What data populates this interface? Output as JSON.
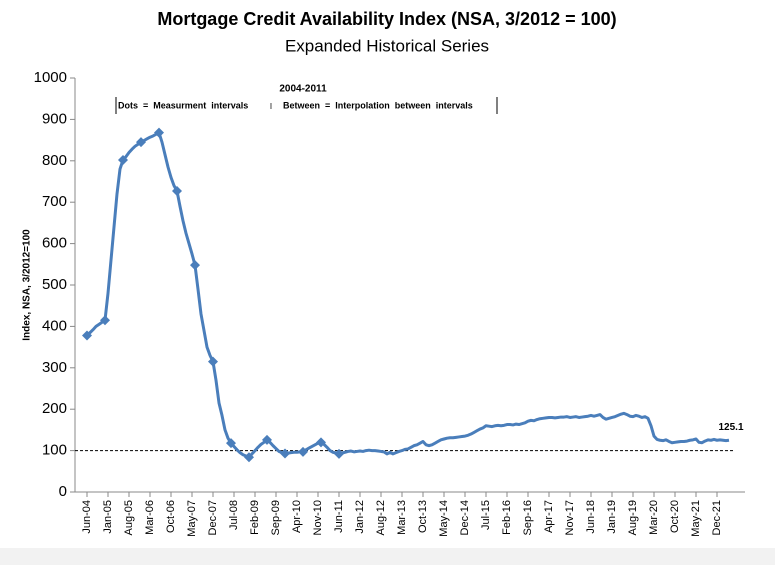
{
  "chart_data": {
    "type": "line",
    "title": "Mortgage Credit Availability Index (NSA, 3/2012 = 100)",
    "subtitle": "Expanded Historical Series",
    "y_label": "Index, NSA, 3/2012=100",
    "annotation_title": "2004-2011",
    "annotation_left": "Dots  =  Measurment  intervals",
    "annotation_sep": "I",
    "annotation_right": "Between  =  Interpolation  between  intervals",
    "categories": [
      "Jun-04",
      null,
      null,
      null,
      null,
      null,
      null,
      "Jan-05",
      null,
      null,
      null,
      null,
      null,
      null,
      "Aug-05",
      null,
      null,
      null,
      null,
      null,
      null,
      "Mar-06",
      null,
      null,
      null,
      null,
      null,
      null,
      "Oct-06",
      null,
      null,
      null,
      null,
      null,
      null,
      "May-07",
      null,
      null,
      null,
      null,
      null,
      null,
      "Dec-07",
      null,
      null,
      null,
      null,
      null,
      null,
      "Jul-08",
      null,
      null,
      null,
      null,
      null,
      null,
      "Feb-09",
      null,
      null,
      null,
      null,
      null,
      null,
      "Sep-09",
      null,
      null,
      null,
      null,
      null,
      null,
      "Apr-10",
      null,
      null,
      null,
      null,
      null,
      null,
      "Nov-10",
      null,
      null,
      null,
      null,
      null,
      null,
      "Jun-11",
      null,
      null,
      null,
      null,
      null,
      null,
      "Jan-12",
      null,
      null,
      null,
      null,
      null,
      null,
      "Aug-12",
      null,
      null,
      null,
      null,
      null,
      null,
      "Mar-13",
      null,
      null,
      null,
      null,
      null,
      null,
      "Oct-13",
      null,
      null,
      null,
      null,
      null,
      null,
      "May-14",
      null,
      null,
      null,
      null,
      null,
      null,
      "Dec-14",
      null,
      null,
      null,
      null,
      null,
      null,
      "Jul-15",
      null,
      null,
      null,
      null,
      null,
      null,
      "Feb-16",
      null,
      null,
      null,
      null,
      null,
      null,
      "Sep-16",
      null,
      null,
      null,
      null,
      null,
      null,
      "Apr-17",
      null,
      null,
      null,
      null,
      null,
      null,
      "Nov-17",
      null,
      null,
      null,
      null,
      null,
      null,
      "Jun-18",
      null,
      null,
      null,
      null,
      null,
      null,
      "Jan-19",
      null,
      null,
      null,
      null,
      null,
      null,
      "Aug-19",
      null,
      null,
      null,
      null,
      null,
      null,
      "Mar-20",
      null,
      null,
      null,
      null,
      null,
      null,
      "Oct-20",
      null,
      null,
      null,
      null,
      null,
      null,
      "May-21",
      null,
      null,
      null,
      null,
      null,
      null,
      "Dec-21",
      null,
      null,
      null,
      null
    ],
    "series": [
      {
        "color": "#4a7ebb",
        "values": [
          378,
          385,
          392,
          400,
          405,
          410,
          415,
          480,
          560,
          640,
          720,
          780,
          802,
          810,
          820,
          828,
          835,
          840,
          845,
          849,
          853,
          857,
          860,
          864,
          868,
          845,
          815,
          785,
          760,
          740,
          727,
          690,
          655,
          625,
          600,
          575,
          548,
          490,
          430,
          390,
          350,
          330,
          315,
          270,
          215,
          185,
          150,
          130,
          118,
          110,
          102,
          95,
          90,
          87,
          84,
          92,
          100,
          108,
          115,
          120,
          126,
          120,
          112,
          105,
          98,
          95,
          93,
          94,
          95,
          96,
          96,
          97,
          97,
          102,
          106,
          110,
          114,
          118,
          120,
          115,
          108,
          100,
          96,
          94,
          92,
          94,
          96,
          98,
          99,
          97,
          98,
          99,
          98,
          100,
          101,
          100,
          100,
          99,
          98,
          97,
          92,
          96,
          92,
          95,
          98,
          100,
          103,
          104,
          108,
          112,
          114,
          118,
          122,
          114,
          112,
          114,
          118,
          122,
          126,
          128,
          130,
          131,
          131,
          132,
          133,
          134,
          135,
          137,
          140,
          144,
          148,
          152,
          155,
          160,
          159,
          158,
          160,
          161,
          160,
          161,
          163,
          163,
          162,
          164,
          163,
          165,
          167,
          171,
          173,
          172,
          175,
          177,
          178,
          179,
          180,
          180,
          179,
          180,
          181,
          181,
          182,
          180,
          181,
          182,
          180,
          181,
          182,
          183,
          185,
          183,
          185,
          187,
          180,
          176,
          178,
          180,
          182,
          185,
          188,
          190,
          187,
          183,
          182,
          185,
          183,
          180,
          182,
          178,
          160,
          135,
          127,
          125,
          124,
          126,
          122,
          119,
          120,
          121,
          122,
          122,
          123,
          125,
          126,
          128,
          120,
          119,
          123,
          126,
          125,
          127,
          125,
          126,
          125,
          124,
          125.1
        ]
      }
    ],
    "marker_indices": [
      0,
      6,
      12,
      18,
      24,
      30,
      36,
      42,
      48,
      54,
      60,
      66,
      72,
      78,
      84
    ],
    "reference_line": 100,
    "ylim": [
      0,
      1000
    ],
    "yticks": [
      0,
      100,
      200,
      300,
      400,
      500,
      600,
      700,
      800,
      900,
      1000
    ],
    "grid": false
  }
}
